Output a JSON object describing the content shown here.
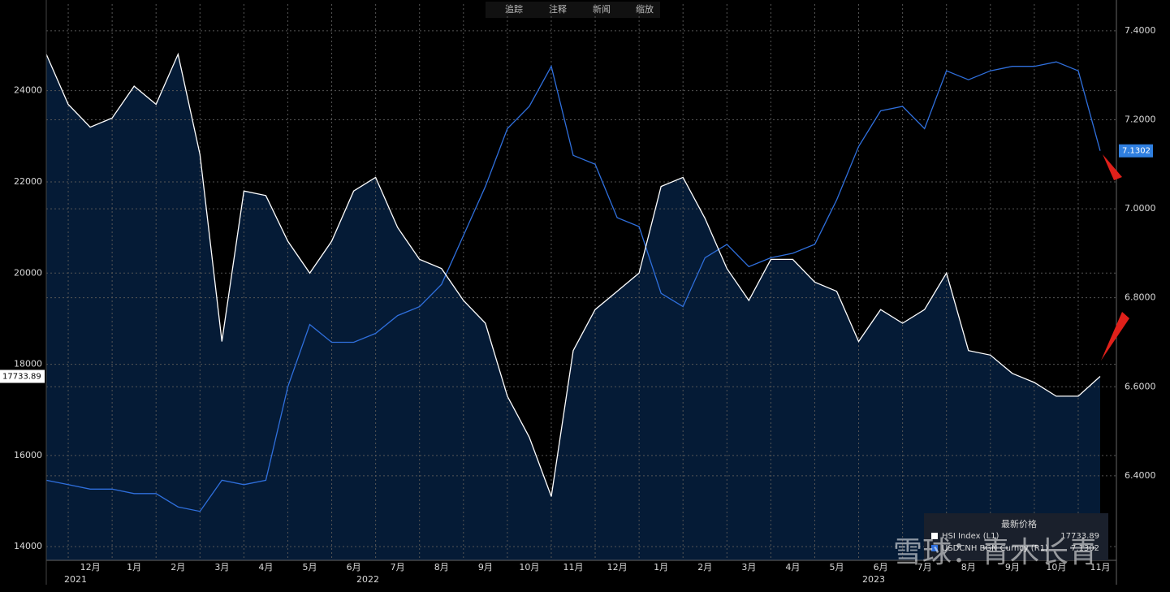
{
  "chart_data": {
    "type": "line",
    "toolbar": [
      "追踪",
      "注释",
      "新闻",
      "缩放"
    ],
    "watermark": "雪球：青木长青",
    "legend_title": "最新价格",
    "categories": [
      null,
      null,
      "12月",
      null,
      "1月",
      null,
      "2月",
      null,
      "3月",
      null,
      "4月",
      null,
      "5月",
      null,
      "6月",
      null,
      "7月",
      null,
      "8月",
      null,
      "9月",
      null,
      "10月",
      null,
      "11月",
      null,
      "12月",
      null,
      "1月",
      null,
      "2月",
      null,
      "3月",
      null,
      "4月",
      null,
      "5月",
      null,
      "6月",
      null,
      "7月",
      null,
      "8月",
      null,
      "9月",
      null,
      "10月",
      null,
      "11月"
    ],
    "years": [
      "2021",
      "2022",
      "2023"
    ],
    "ylim": [
      13700,
      25900
    ],
    "yticks": [
      14000,
      16000,
      18000,
      20000,
      22000,
      24000
    ],
    "y2lim": [
      6.21,
      7.46
    ],
    "y2ticks": [
      {
        "value": 6.4,
        "label": "6.4000"
      },
      {
        "value": 6.6,
        "label": "6.6000"
      },
      {
        "value": 6.8,
        "label": "6.8000"
      },
      {
        "value": 7.0,
        "label": "7.0000"
      },
      {
        "value": 7.2,
        "label": "7.2000"
      },
      {
        "value": 7.4,
        "label": "7.4000"
      }
    ],
    "grid": true,
    "series": [
      {
        "name": "HSI Index (L1)",
        "color": "#ffffff",
        "fill": "#051b36",
        "axis": "y",
        "last_label": "17733.89",
        "values": [
          24800,
          23700,
          23200,
          23400,
          24100,
          23700,
          24800,
          22600,
          18500,
          21800,
          21700,
          20700,
          20000,
          20700,
          21800,
          22100,
          21000,
          20300,
          20100,
          19400,
          18900,
          17300,
          16400,
          15100,
          18300,
          19200,
          19600,
          20000,
          21900,
          22100,
          21200,
          20100,
          19400,
          20300,
          20300,
          19800,
          19600,
          18500,
          19200,
          18900,
          19200,
          20000,
          18300,
          18200,
          17800,
          17600,
          17300,
          17300,
          17733.89
        ]
      },
      {
        "name": "USDCNH BGN Curncy (R1)",
        "color": "#2f6fdc",
        "axis": "y2",
        "last_label": "7.1302",
        "values": [
          6.39,
          6.38,
          6.37,
          6.37,
          6.36,
          6.36,
          6.33,
          6.32,
          6.39,
          6.38,
          6.39,
          6.6,
          6.74,
          6.7,
          6.7,
          6.72,
          6.76,
          6.78,
          6.83,
          6.94,
          7.05,
          7.18,
          7.23,
          7.32,
          7.12,
          7.1,
          6.98,
          6.96,
          6.81,
          6.78,
          6.89,
          6.92,
          6.87,
          6.89,
          6.9,
          6.92,
          7.02,
          7.14,
          7.22,
          7.23,
          7.18,
          7.31,
          7.29,
          7.31,
          7.32,
          7.32,
          7.33,
          7.31,
          7.1302
        ]
      }
    ]
  }
}
